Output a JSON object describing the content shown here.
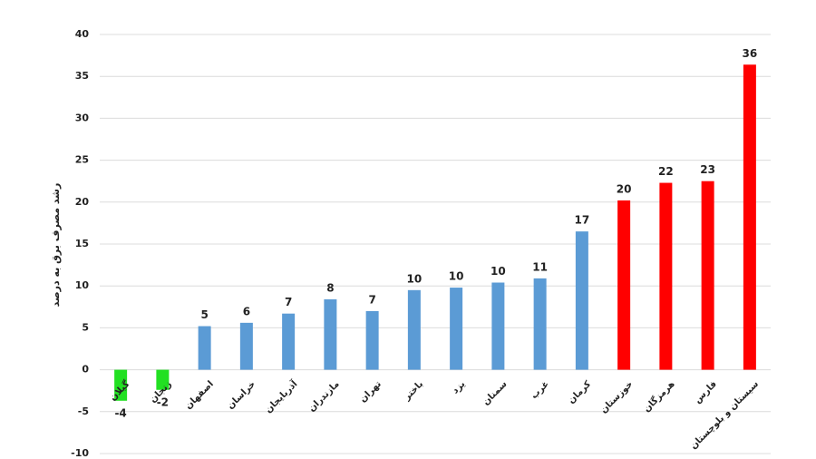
{
  "chart_data": {
    "type": "bar",
    "y_label": "رشد مصرف برق به درصد",
    "categories": [
      "گیلان",
      "زنجان",
      "اصفهان",
      "خراسان",
      "آذربایجان",
      "مازندران",
      "تهران",
      "باختر",
      "یزد",
      "سمنان",
      "غرب",
      "کرمان",
      "خوزستان",
      "هرمزگان",
      "فارس",
      "سیستان و بلوچستان"
    ],
    "values": [
      -3.7,
      -2.4,
      5.2,
      5.6,
      6.7,
      8.4,
      7.0,
      9.5,
      9.8,
      10.4,
      10.9,
      16.5,
      20.2,
      22.3,
      22.5,
      36.4
    ],
    "value_labels": [
      "-4",
      "-2",
      "5",
      "6",
      "7",
      "8",
      "7",
      "10",
      "10",
      "10",
      "11",
      "17",
      "20",
      "22",
      "23",
      "36"
    ],
    "colors": [
      "#22e022",
      "#22e022",
      "#5b9bd5",
      "#5b9bd5",
      "#5b9bd5",
      "#5b9bd5",
      "#5b9bd5",
      "#5b9bd5",
      "#5b9bd5",
      "#5b9bd5",
      "#5b9bd5",
      "#5b9bd5",
      "#ff0000",
      "#ff0000",
      "#ff0000",
      "#ff0000"
    ],
    "ylim": [
      -10,
      40
    ],
    "yticks": [
      -10,
      -5,
      0,
      5,
      10,
      15,
      20,
      25,
      30,
      35,
      40
    ],
    "grid": true
  }
}
